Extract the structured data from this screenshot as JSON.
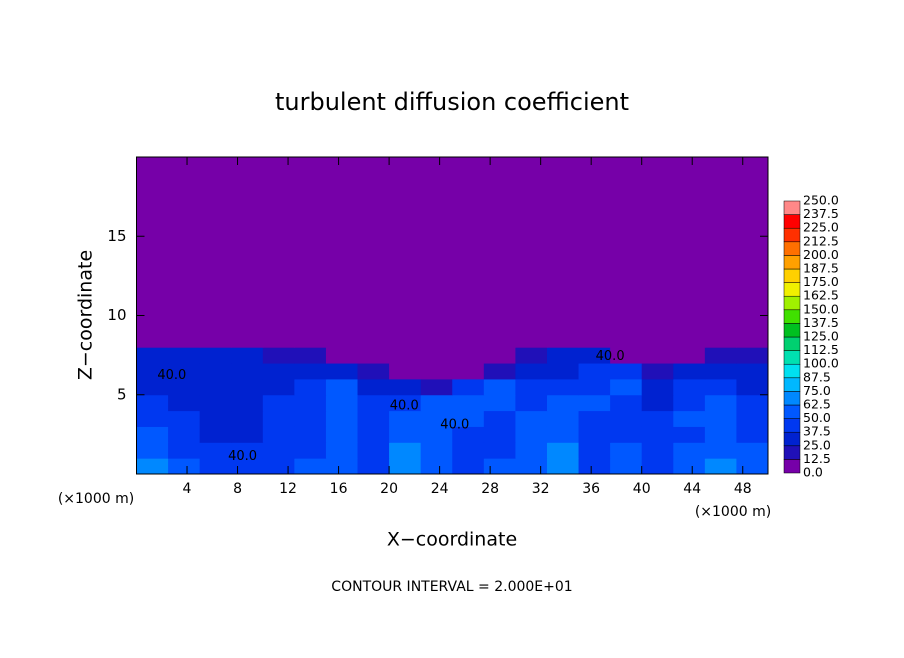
{
  "chart_data": {
    "type": "heatmap",
    "title": "turbulent diffusion coefficient",
    "x_label": "X−coordinate",
    "y_label": "Z−coordinate",
    "x_unit_label": "(×1000 m)",
    "footnote": "CONTOUR INTERVAL = 2.000E+01",
    "xlim": [
      0,
      50
    ],
    "ylim": [
      0,
      20
    ],
    "xticks": [
      4,
      8,
      12,
      16,
      20,
      24,
      28,
      32,
      36,
      40,
      44,
      48
    ],
    "yticks": [
      5,
      10,
      15
    ],
    "xbins": [
      0,
      2.5,
      5,
      7.5,
      10,
      12.5,
      15,
      17.5,
      20,
      22.5,
      25,
      27.5,
      30,
      32.5,
      35,
      37.5,
      40,
      42.5,
      45,
      47.5,
      50
    ],
    "zbins": [
      0,
      1,
      2,
      3,
      4,
      5,
      6,
      7,
      8,
      9,
      20
    ],
    "values": [
      [
        70,
        55,
        45,
        40,
        45,
        50,
        60,
        45,
        70,
        60,
        45,
        50,
        55,
        70,
        45,
        60,
        45,
        50,
        70,
        60
      ],
      [
        60,
        45,
        40,
        40,
        40,
        45,
        55,
        40,
        65,
        50,
        40,
        45,
        60,
        65,
        40,
        50,
        40,
        55,
        60,
        50
      ],
      [
        50,
        40,
        35,
        35,
        40,
        45,
        50,
        40,
        55,
        50,
        40,
        45,
        55,
        60,
        40,
        45,
        40,
        45,
        55,
        45
      ],
      [
        45,
        40,
        35,
        35,
        40,
        45,
        60,
        40,
        50,
        60,
        50,
        45,
        50,
        55,
        45,
        40,
        40,
        50,
        55,
        45
      ],
      [
        40,
        35,
        30,
        35,
        40,
        45,
        55,
        45,
        40,
        50,
        55,
        50,
        45,
        50,
        50,
        45,
        35,
        45,
        50,
        40
      ],
      [
        35,
        30,
        30,
        30,
        35,
        40,
        50,
        35,
        30,
        20,
        40,
        50,
        40,
        45,
        45,
        50,
        30,
        40,
        45,
        35
      ],
      [
        30,
        30,
        30,
        30,
        30,
        35,
        35,
        20,
        10,
        5,
        5,
        20,
        35,
        35,
        40,
        40,
        15,
        30,
        35,
        30
      ],
      [
        25,
        25,
        25,
        25,
        20,
        15,
        10,
        0,
        0,
        0,
        0,
        0,
        15,
        25,
        30,
        10,
        0,
        5,
        15,
        20
      ],
      [
        10,
        10,
        10,
        5,
        5,
        0,
        0,
        0,
        0,
        0,
        0,
        0,
        0,
        5,
        5,
        0,
        0,
        0,
        0,
        5
      ],
      [
        0,
        0,
        0,
        0,
        0,
        0,
        0,
        0,
        0,
        0,
        0,
        0,
        0,
        0,
        0,
        0,
        0,
        0,
        0,
        0
      ]
    ],
    "contour_labels": [
      {
        "value": 40,
        "label": "40.0",
        "x": 21.2,
        "z": 4.3
      },
      {
        "value": 40,
        "label": "40.0",
        "x": 25.2,
        "z": 3.1
      },
      {
        "value": 40,
        "label": "40.0",
        "x": 8.4,
        "z": 1.1
      },
      {
        "value": 40,
        "label": "40.0",
        "x": 2.8,
        "z": 6.2
      },
      {
        "value": 40,
        "label": "40.0",
        "x": 37.5,
        "z": 7.4
      }
    ],
    "colorbar_ticks": [
      {
        "value": 0,
        "label": "0.0"
      },
      12.5,
      {
        "value": 25,
        "label": "25.0"
      },
      37.5,
      {
        "value": 50,
        "label": "50.0"
      },
      62.5,
      {
        "value": 75,
        "label": "75.0"
      },
      87.5,
      {
        "value": 100,
        "label": "100.0"
      },
      112.5,
      {
        "value": 125,
        "label": "125.0"
      },
      137.5,
      {
        "value": 150,
        "label": "150.0"
      },
      162.5,
      {
        "value": 175,
        "label": "175.0"
      },
      187.5,
      {
        "value": 200,
        "label": "200.0"
      },
      212.5,
      {
        "value": 225,
        "label": "225.0"
      },
      237.5,
      {
        "value": 250,
        "label": "250.0"
      }
    ],
    "colors": [
      "#7600a8",
      "#2010b8",
      "#0022d0",
      "#0038f0",
      "#0058ff",
      "#0088ff",
      "#00b8ff",
      "#00e0f0",
      "#00e0b0",
      "#00d070",
      "#00c020",
      "#40e000",
      "#a0f000",
      "#f0f000",
      "#ffd000",
      "#ffa000",
      "#ff7000",
      "#ff3000",
      "#ff0000",
      "#ff8888"
    ]
  }
}
